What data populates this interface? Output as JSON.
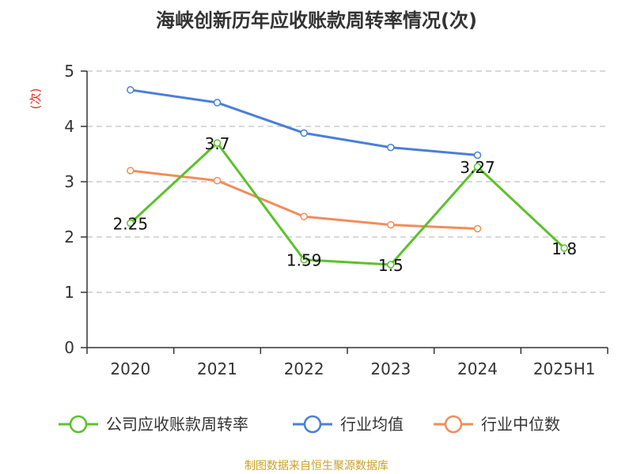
{
  "chart_data": {
    "type": "line",
    "title": "海峡创新历年应收账款周转率情况(次)",
    "ylabel": "(次)",
    "xlabel": "",
    "categories": [
      "2020",
      "2021",
      "2022",
      "2023",
      "2024",
      "2025H1"
    ],
    "ylim": [
      0,
      5
    ],
    "yticks": [
      0,
      1,
      2,
      3,
      4,
      5
    ],
    "grid": true,
    "legend_position": "bottom",
    "series": [
      {
        "name": "公司应收账款周转率",
        "color": "#5cc12b",
        "values": [
          2.25,
          3.7,
          1.59,
          1.5,
          3.27,
          1.8
        ],
        "labels": [
          "2.25",
          "3.7",
          "1.59",
          "1.5",
          "3.27",
          "1.8"
        ]
      },
      {
        "name": "行业均值",
        "color": "#4a7fd8",
        "values": [
          4.66,
          4.43,
          3.88,
          3.62,
          3.48,
          null
        ]
      },
      {
        "name": "行业中位数",
        "color": "#f28c5a",
        "values": [
          3.2,
          3.02,
          2.37,
          2.22,
          2.15,
          null
        ]
      }
    ]
  },
  "source": "制图数据来自恒生聚源数据库"
}
